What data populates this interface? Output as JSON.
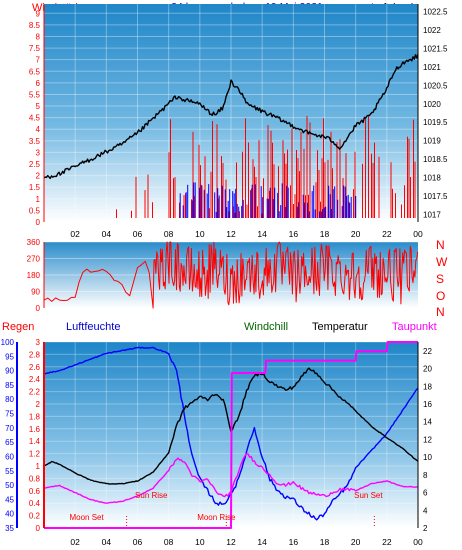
{
  "header": {
    "left_title": "Windstärke",
    "center_title": "24 hour graph day : 19 Mai 2021",
    "right_title": "Luftdruck"
  },
  "middle_header": {
    "compass": [
      "N",
      "W",
      "S",
      "O",
      "N"
    ]
  },
  "bottom_header": {
    "regen": "Regen",
    "luftfeuchte": "Luftfeuchte",
    "windchill": "Windchill",
    "temperatur": "Temperatur",
    "taupunkt": "Taupunkt"
  },
  "annotations": {
    "moon_set": "Moon Set",
    "sun_rise": "Sun Rise",
    "moon_rise": "Moon Rise",
    "sun_set": "Sun Set"
  },
  "colors": {
    "wind": "#ff0000",
    "gust_blue": "#0000ff",
    "pressure": "#000000",
    "taupunkt": "#ff00ff",
    "regen": "#ff0000",
    "luftfeuchte": "#0000ff",
    "windchill": "#006600",
    "temperatur": "#000000"
  },
  "chart_data": [
    {
      "type": "line",
      "title": "24 hour graph day : 19 Mai 2021",
      "x_ticks": [
        "02",
        "04",
        "06",
        "08",
        "10",
        "12",
        "14",
        "16",
        "18",
        "20",
        "22",
        "00"
      ],
      "y_left_label": "Windstärke",
      "y_left_ticks": [
        "0",
        "0.5",
        "1",
        "1.5",
        "2",
        "2.5",
        "3",
        "3.5",
        "4",
        "4.5",
        "5",
        "5.5",
        "6",
        "6.5",
        "7",
        "7.5",
        "8",
        "8.5",
        "9"
      ],
      "y_right_label": "Luftdruck",
      "y_right_ticks": [
        "1017",
        "1017.5",
        "1018",
        "1018.5",
        "1019",
        "1019.5",
        "1020",
        "1020.5",
        "1021",
        "1021.5",
        "1022",
        "1022.5"
      ],
      "ylim_left": [
        0,
        9.4
      ],
      "ylim_right": [
        1016.8,
        1022.7
      ],
      "series": [
        {
          "name": "Luftdruck",
          "x": [
            0.0,
            1.0,
            2.0,
            3.0,
            4.0,
            5.0,
            6.0,
            7.0,
            7.5,
            8.0,
            8.5,
            9.0,
            10.0,
            10.5,
            11.0,
            11.5,
            12.0,
            12.5,
            13.0,
            14.0,
            15.0,
            16.0,
            17.0,
            18.0,
            18.5,
            19.0,
            19.5,
            20.0,
            21.0,
            22.0,
            22.5,
            23.0,
            23.5,
            24.0
          ],
          "values": [
            1018.0,
            1018.1,
            1018.3,
            1018.5,
            1018.7,
            1018.9,
            1019.2,
            1019.6,
            1019.8,
            1020.0,
            1020.2,
            1020.1,
            1020.0,
            1019.8,
            1019.7,
            1019.9,
            1020.6,
            1020.4,
            1020.0,
            1019.8,
            1019.6,
            1019.4,
            1019.2,
            1019.1,
            1019.0,
            1018.8,
            1019.1,
            1019.4,
            1019.7,
            1020.4,
            1020.9,
            1021.1,
            1021.2,
            1021.3
          ]
        }
      ]
    },
    {
      "type": "line",
      "title": "",
      "x_ticks": [
        "02",
        "04",
        "06",
        "08",
        "10",
        "12",
        "14",
        "16",
        "18",
        "20",
        "22",
        "00"
      ],
      "y_ticks": [
        "0",
        "90",
        "180",
        "270",
        "360"
      ],
      "ylim": [
        0,
        360
      ],
      "series": [
        {
          "name": "",
          "x": [
            0.0,
            2.0,
            2.5,
            3.0,
            4.0,
            5.0,
            5.5,
            6.0,
            6.5,
            7.0,
            8.0,
            9.0,
            10.0,
            11.0,
            12.0,
            13.0,
            14.0,
            15.0,
            16.0,
            17.0,
            18.0,
            19.0,
            20.0,
            21.0,
            22.0,
            23.0,
            24.0
          ],
          "values": [
            50,
            50,
            210,
            200,
            200,
            120,
            80,
            230,
            250,
            120,
            280,
            200,
            170,
            220,
            150,
            200,
            180,
            230,
            170,
            190,
            220,
            200,
            180,
            210,
            190,
            170,
            210
          ]
        }
      ]
    },
    {
      "type": "line",
      "title": "",
      "x_ticks": [
        "02",
        "04",
        "06",
        "08",
        "10",
        "12",
        "14",
        "16",
        "18",
        "20",
        "22",
        "00"
      ],
      "regen_ticks": [
        "0",
        "0.2",
        "0.4",
        "0.6",
        "0.8",
        "1",
        "1.2",
        "1.4",
        "1.6",
        "1.8",
        "2",
        "2.2",
        "2.4",
        "2.6",
        "2.8",
        "3"
      ],
      "humidity_ticks": [
        "35",
        "40",
        "45",
        "50",
        "55",
        "60",
        "65",
        "70",
        "75",
        "80",
        "85",
        "90",
        "95",
        "100"
      ],
      "temp_ticks": [
        "2",
        "4",
        "6",
        "8",
        "10",
        "12",
        "14",
        "16",
        "18",
        "20",
        "22"
      ],
      "ylim_humidity": [
        35,
        100
      ],
      "ylim_temp": [
        2,
        23
      ],
      "ylim_regen": [
        0,
        3
      ],
      "series": [
        {
          "name": "Luftfeuchte",
          "x": [
            0.0,
            1.0,
            2.0,
            3.0,
            4.0,
            5.0,
            6.0,
            7.0,
            7.5,
            8.0,
            8.5,
            9.0,
            9.5,
            10.0,
            10.5,
            11.0,
            11.5,
            12.0,
            12.5,
            13.0,
            13.5,
            14.0,
            14.5,
            15.0,
            15.5,
            16.0,
            16.5,
            17.0,
            17.5,
            18.0,
            18.5,
            19.0,
            19.5,
            20.0,
            21.0,
            22.0,
            22.5,
            23.0,
            23.5,
            24.0
          ],
          "values": [
            89,
            90,
            92,
            94,
            96,
            97,
            98,
            98,
            97,
            96,
            90,
            75,
            60,
            52,
            48,
            44,
            43,
            47,
            52,
            62,
            70,
            60,
            52,
            48,
            46,
            45,
            42,
            40,
            38,
            40,
            44,
            47,
            50,
            56,
            62,
            68,
            72,
            76,
            80,
            84
          ]
        },
        {
          "name": "Temperatur",
          "x": [
            0.0,
            0.5,
            1.0,
            2.0,
            3.0,
            4.0,
            5.0,
            6.0,
            7.0,
            8.0,
            8.5,
            9.0,
            9.5,
            10.0,
            10.5,
            11.0,
            11.5,
            12.0,
            12.5,
            13.0,
            13.5,
            14.0,
            14.5,
            15.0,
            15.5,
            16.0,
            16.5,
            17.0,
            17.5,
            18.0,
            19.0,
            20.0,
            21.0,
            22.0,
            23.0,
            24.0
          ],
          "values": [
            9.0,
            9.5,
            9.2,
            8.2,
            7.4,
            7.0,
            7.0,
            7.3,
            8.3,
            10.5,
            13.5,
            15.5,
            16.2,
            16.8,
            16.5,
            17.2,
            16.5,
            13.0,
            14.5,
            17.5,
            19.2,
            19.5,
            18.5,
            18.0,
            17.6,
            17.9,
            19.0,
            20.0,
            19.5,
            18.5,
            16.8,
            15.2,
            13.5,
            12.2,
            11.0,
            9.5
          ]
        },
        {
          "name": "Taupunkt",
          "x": [
            0.0,
            1.0,
            2.0,
            3.0,
            4.0,
            5.0,
            6.0,
            7.0,
            7.5,
            8.0,
            8.5,
            9.0,
            9.5,
            10.0,
            10.5,
            11.0,
            11.5,
            12.0,
            12.5,
            13.0,
            13.5,
            14.0,
            14.5,
            15.0,
            15.5,
            16.0,
            16.5,
            17.0,
            17.5,
            18.0,
            19.0,
            20.0,
            21.0,
            22.0,
            23.0,
            24.0
          ],
          "values": [
            6.5,
            6.8,
            6.0,
            5.2,
            4.8,
            5.0,
            5.6,
            6.5,
            7.5,
            8.5,
            9.8,
            9.5,
            8.0,
            7.2,
            7.5,
            6.2,
            5.5,
            6.0,
            8.5,
            10.5,
            9.5,
            8.8,
            8.0,
            7.0,
            6.8,
            7.2,
            6.5,
            6.0,
            5.8,
            5.6,
            6.4,
            6.2,
            7.0,
            7.3,
            6.7,
            6.6
          ]
        },
        {
          "name": "Regen",
          "x": [
            0.0,
            12.0,
            12.05,
            14.2,
            14.25,
            20.0,
            20.05,
            22.0,
            22.05,
            24.0
          ],
          "values": [
            0.0,
            0.0,
            2.5,
            2.5,
            2.7,
            2.7,
            2.85,
            2.85,
            3.0,
            3.0
          ]
        }
      ],
      "annotations": [
        {
          "text": "Moon Set",
          "x": 5.3
        },
        {
          "text": "Sun Rise",
          "x": 5.6
        },
        {
          "text": "Moon Rise",
          "x": 11.7
        },
        {
          "text": "Sun Set",
          "x": 21.2
        }
      ]
    }
  ]
}
